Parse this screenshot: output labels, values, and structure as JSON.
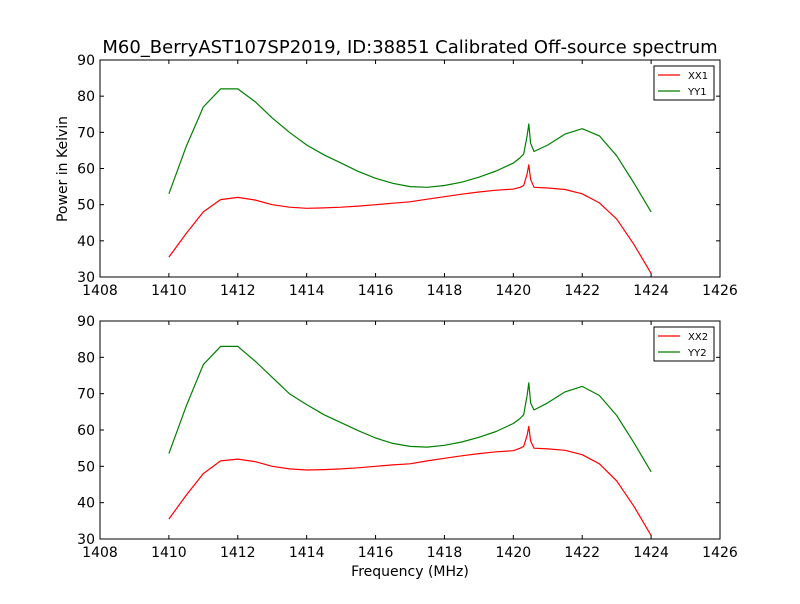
{
  "title": "M60_BerryAST107SP2019, ID:38851 Calibrated Off-source spectrum",
  "ylabel": "Power in Kelvin",
  "xlabel": "Frequency (MHz)",
  "chart_data": [
    {
      "type": "line",
      "title": "M60_BerryAST107SP2019, ID:38851 Calibrated Off-source spectrum",
      "xlabel": "",
      "ylabel": "Power in Kelvin",
      "xlim": [
        1408,
        1426
      ],
      "ylim": [
        30,
        90
      ],
      "xticks": [
        1408,
        1410,
        1412,
        1414,
        1416,
        1418,
        1420,
        1422,
        1424,
        1426
      ],
      "yticks": [
        30,
        40,
        50,
        60,
        70,
        80,
        90
      ],
      "grid": false,
      "legend": "top-right",
      "series": [
        {
          "name": "XX1",
          "color": "#ff0000",
          "x": [
            1410,
            1410.5,
            1411,
            1411.5,
            1412,
            1412.5,
            1413,
            1413.5,
            1414,
            1414.5,
            1415,
            1415.5,
            1416,
            1416.5,
            1417,
            1417.5,
            1418,
            1418.5,
            1419,
            1419.5,
            1420,
            1420.2,
            1420.3,
            1420.4,
            1420.45,
            1420.5,
            1420.6,
            1421,
            1421.5,
            1422,
            1422.5,
            1423,
            1423.5,
            1424
          ],
          "y": [
            35.5,
            42.0,
            48.0,
            51.4,
            52.0,
            51.3,
            50.0,
            49.3,
            49.0,
            49.1,
            49.3,
            49.6,
            50.0,
            50.4,
            50.8,
            51.5,
            52.2,
            52.9,
            53.5,
            54.0,
            54.3,
            54.8,
            55.3,
            58.5,
            61.0,
            57.0,
            54.8,
            54.6,
            54.2,
            53.0,
            50.5,
            46.0,
            39.0,
            31.0
          ]
        },
        {
          "name": "YY1",
          "color": "#008000",
          "x": [
            1410,
            1410.5,
            1411,
            1411.5,
            1412,
            1412.5,
            1413,
            1413.5,
            1414,
            1414.5,
            1415,
            1415.5,
            1416,
            1416.5,
            1417,
            1417.5,
            1418,
            1418.5,
            1419,
            1419.5,
            1420,
            1420.2,
            1420.3,
            1420.4,
            1420.45,
            1420.5,
            1420.6,
            1421,
            1421.5,
            1422,
            1422.5,
            1423,
            1423.5,
            1424
          ],
          "y": [
            53.0,
            66.0,
            77.0,
            82.0,
            82.0,
            78.5,
            74.0,
            70.0,
            66.5,
            63.8,
            61.5,
            59.2,
            57.3,
            55.9,
            55.0,
            54.8,
            55.3,
            56.2,
            57.6,
            59.3,
            61.5,
            63.0,
            64.0,
            69.0,
            72.3,
            67.0,
            64.7,
            66.5,
            69.5,
            71.0,
            69.0,
            63.5,
            56.0,
            48.0
          ]
        }
      ]
    },
    {
      "type": "line",
      "title": "",
      "xlabel": "Frequency (MHz)",
      "ylabel": "",
      "xlim": [
        1408,
        1426
      ],
      "ylim": [
        30,
        90
      ],
      "xticks": [
        1408,
        1410,
        1412,
        1414,
        1416,
        1418,
        1420,
        1422,
        1424,
        1426
      ],
      "yticks": [
        30,
        40,
        50,
        60,
        70,
        80,
        90
      ],
      "grid": false,
      "legend": "top-right",
      "series": [
        {
          "name": "XX2",
          "color": "#ff0000",
          "x": [
            1410,
            1410.5,
            1411,
            1411.5,
            1412,
            1412.5,
            1413,
            1413.5,
            1414,
            1414.5,
            1415,
            1415.5,
            1416,
            1416.5,
            1417,
            1417.5,
            1418,
            1418.5,
            1419,
            1419.5,
            1420,
            1420.2,
            1420.3,
            1420.4,
            1420.45,
            1420.5,
            1420.6,
            1421,
            1421.5,
            1422,
            1422.5,
            1423,
            1423.5,
            1424
          ],
          "y": [
            35.5,
            42.0,
            48.0,
            51.5,
            52.0,
            51.3,
            50.0,
            49.3,
            49.0,
            49.1,
            49.3,
            49.6,
            50.0,
            50.4,
            50.7,
            51.5,
            52.2,
            52.9,
            53.5,
            54.0,
            54.3,
            55.0,
            55.5,
            58.5,
            61.0,
            57.0,
            55.0,
            54.8,
            54.4,
            53.2,
            50.7,
            46.0,
            39.0,
            31.0
          ]
        },
        {
          "name": "YY2",
          "color": "#008000",
          "x": [
            1410,
            1410.5,
            1411,
            1411.5,
            1412,
            1412.5,
            1413,
            1413.5,
            1414,
            1414.5,
            1415,
            1415.5,
            1416,
            1416.5,
            1417,
            1417.5,
            1418,
            1418.5,
            1419,
            1419.5,
            1420,
            1420.2,
            1420.3,
            1420.4,
            1420.45,
            1420.5,
            1420.6,
            1421,
            1421.5,
            1422,
            1422.5,
            1423,
            1423.5,
            1424
          ],
          "y": [
            53.5,
            66.5,
            78.0,
            83.0,
            83.0,
            79.0,
            74.5,
            70.0,
            67.0,
            64.2,
            62.0,
            59.8,
            57.8,
            56.3,
            55.5,
            55.3,
            55.8,
            56.7,
            58.0,
            59.6,
            61.8,
            63.2,
            64.2,
            69.5,
            73.0,
            67.5,
            65.5,
            67.5,
            70.5,
            72.0,
            69.5,
            64.0,
            56.5,
            48.5
          ]
        }
      ]
    }
  ]
}
